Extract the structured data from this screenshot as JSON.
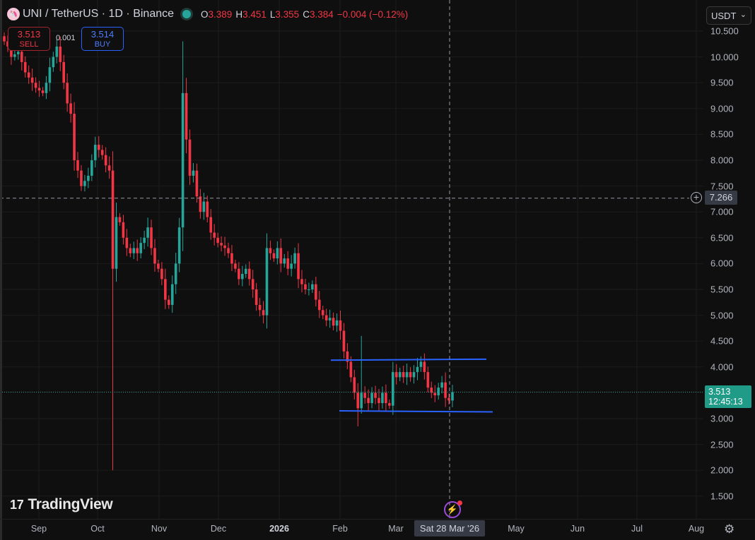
{
  "header": {
    "symbol": "UNI / TetherUS · 1D · Binance",
    "logo_icon": "uniswap-logo",
    "ohlc": {
      "o_label": "O",
      "o": "3.389",
      "h_label": "H",
      "h": "3.451",
      "l_label": "L",
      "l": "3.355",
      "c_label": "C",
      "c": "3.384",
      "change": "−0.004 (−0.12%)"
    }
  },
  "trade": {
    "sell_price": "3.513",
    "sell_label": "SELL",
    "spread": "0.001",
    "buy_price": "3.514",
    "buy_label": "BUY"
  },
  "currency": {
    "value": "USDT"
  },
  "price_axis": {
    "ticks": [
      "10.500",
      "10.000",
      "9.500",
      "9.000",
      "8.500",
      "8.000",
      "7.500",
      "7.000",
      "6.500",
      "6.000",
      "5.500",
      "5.000",
      "4.500",
      "4.000",
      "3.000",
      "2.500",
      "2.000",
      "1.500"
    ],
    "crosshair_price": "7.266",
    "last_price": "3.513",
    "countdown": "12:45:13"
  },
  "time_axis": {
    "labels": [
      "Sep",
      "Oct",
      "Nov",
      "Dec",
      "2026",
      "Feb",
      "Mar",
      "May",
      "Jun",
      "Jul",
      "Aug"
    ],
    "crosshair_date": "Sat 28 Mar '26"
  },
  "branding": {
    "name": "TradingView"
  },
  "colors": {
    "up": "#26a69a",
    "down": "#f23645",
    "trendline": "#2962ff",
    "background": "#0f0f0f"
  },
  "chart_data": {
    "type": "candlestick",
    "interval": "1D",
    "ylim": [
      1.3,
      10.7
    ],
    "grid": true,
    "closes": [
      10.3,
      10.2,
      10.0,
      10.05,
      10.1,
      9.9,
      9.7,
      9.6,
      9.5,
      9.4,
      9.35,
      9.3,
      9.5,
      9.8,
      10.0,
      10.2,
      9.9,
      9.5,
      9.1,
      8.9,
      8.0,
      7.8,
      7.5,
      7.6,
      7.7,
      8.0,
      8.3,
      8.2,
      8.1,
      7.9,
      7.8,
      5.9,
      6.9,
      6.8,
      6.5,
      6.3,
      6.2,
      6.3,
      6.2,
      6.4,
      6.5,
      6.7,
      6.3,
      6.0,
      5.9,
      5.7,
      5.3,
      5.2,
      5.6,
      6.0,
      6.7,
      9.3,
      8.4,
      7.7,
      7.8,
      7.3,
      7.0,
      7.2,
      6.9,
      6.6,
      6.5,
      6.4,
      6.35,
      6.3,
      6.2,
      6.0,
      5.9,
      5.7,
      5.8,
      5.9,
      5.7,
      5.5,
      5.2,
      5.1,
      5.0,
      6.3,
      6.2,
      6.1,
      6.3,
      6.0,
      6.1,
      5.9,
      6.0,
      6.2,
      5.7,
      5.6,
      5.5,
      5.5,
      5.6,
      5.3,
      5.1,
      5.0,
      4.9,
      4.95,
      4.8,
      4.9,
      4.7,
      4.3,
      4.1,
      3.8,
      3.5,
      3.2,
      3.5,
      3.4,
      3.3,
      3.5,
      3.4,
      3.3,
      3.5,
      3.3,
      3.25,
      3.9,
      3.8,
      3.9,
      3.8,
      3.9,
      3.8,
      3.9,
      4.0,
      4.1,
      3.9,
      3.6,
      3.5,
      3.45,
      3.6,
      3.7,
      3.4,
      3.35,
      3.51
    ],
    "extreme_wicks": [
      {
        "index": 31,
        "low": 2.0
      },
      {
        "index": 51,
        "high": 10.3
      },
      {
        "index": 101,
        "low": 2.85
      },
      {
        "index": 102,
        "high": 4.6
      }
    ],
    "trendlines": [
      {
        "start_price": 4.13,
        "end_price": 4.15
      },
      {
        "start_price": 3.15,
        "end_price": 3.13
      }
    ]
  }
}
